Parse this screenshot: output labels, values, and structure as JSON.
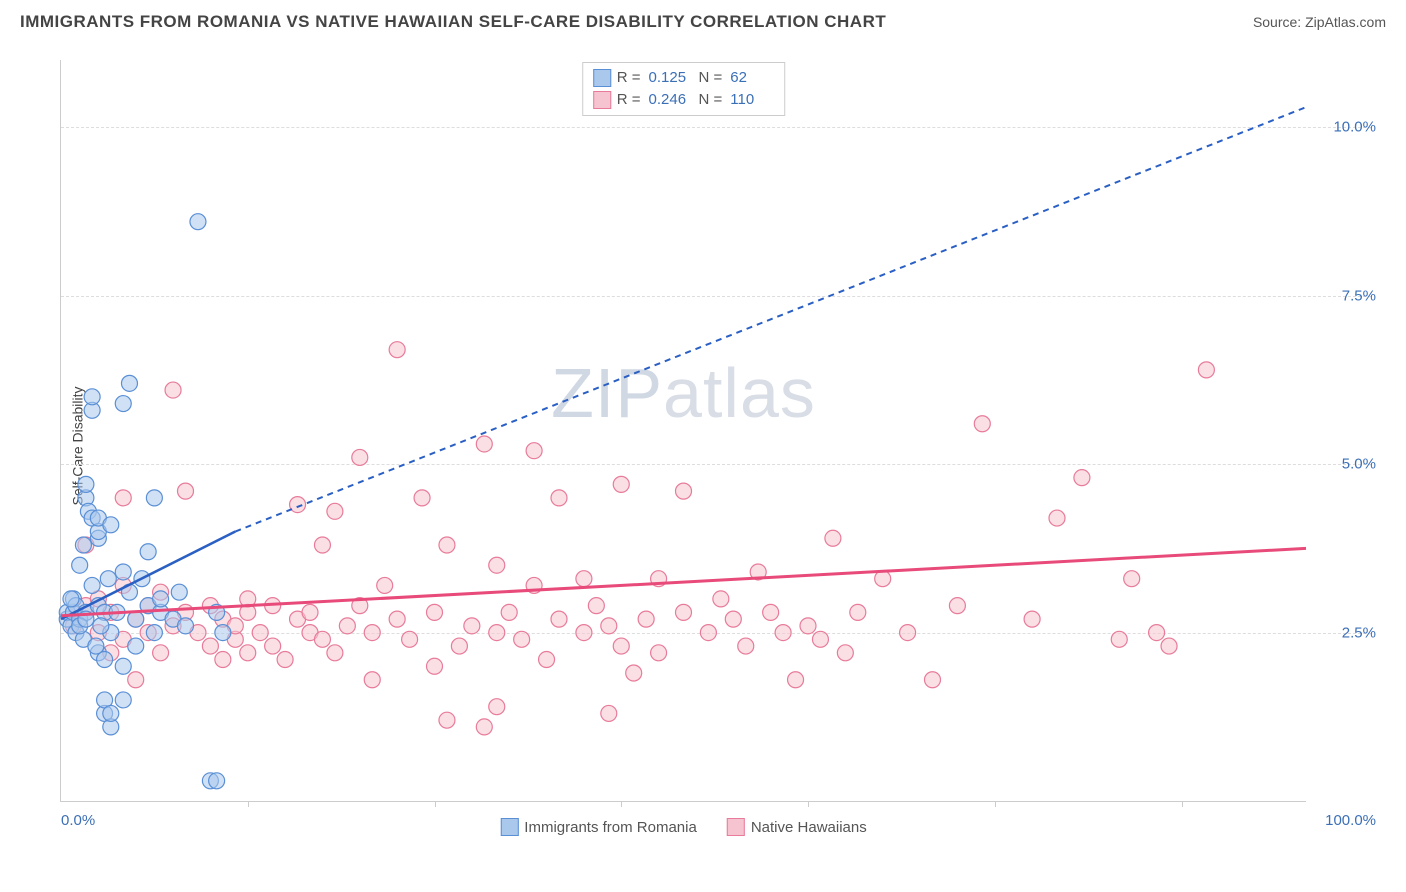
{
  "header": {
    "title": "IMMIGRANTS FROM ROMANIA VS NATIVE HAWAIIAN SELF-CARE DISABILITY CORRELATION CHART",
    "source": "Source: ZipAtlas.com"
  },
  "chart": {
    "type": "scatter",
    "y_axis_label": "Self-Care Disability",
    "watermark": "ZIPatlas",
    "xlim": [
      0,
      100
    ],
    "ylim": [
      0,
      11
    ],
    "x_ticks": [
      0,
      15,
      30,
      45,
      60,
      75,
      90,
      100
    ],
    "x_tick_labels": {
      "0": "0.0%",
      "100": "100.0%"
    },
    "y_gridlines": [
      2.5,
      5.0,
      7.5,
      10.0
    ],
    "y_tick_labels": [
      "2.5%",
      "5.0%",
      "7.5%",
      "10.0%"
    ],
    "background_color": "#ffffff",
    "grid_color": "#dddddd",
    "axis_color": "#cccccc",
    "tick_label_color": "#3b6fb6",
    "marker_radius": 8,
    "marker_stroke_width": 1.2,
    "series": [
      {
        "name": "Immigrants from Romania",
        "fill_color": "#a9c8ec",
        "stroke_color": "#5a8fd6",
        "fill_opacity": 0.55,
        "R": "0.125",
        "N": "62",
        "trend_solid": {
          "x1": 0,
          "y1": 2.7,
          "x2": 14,
          "y2": 4.0
        },
        "trend_dashed": {
          "x1": 14,
          "y1": 4.0,
          "x2": 100,
          "y2": 10.3
        },
        "trend_color": "#2a5fc4",
        "trend_width": 2.5,
        "points": [
          [
            0.5,
            2.7
          ],
          [
            0.5,
            2.8
          ],
          [
            0.8,
            2.6
          ],
          [
            1.0,
            2.8
          ],
          [
            1.0,
            3.0
          ],
          [
            1.2,
            2.5
          ],
          [
            1.2,
            2.9
          ],
          [
            1.5,
            2.7
          ],
          [
            1.5,
            3.5
          ],
          [
            1.8,
            2.4
          ],
          [
            2.0,
            2.8
          ],
          [
            2.0,
            4.5
          ],
          [
            2.0,
            4.7
          ],
          [
            2.2,
            4.3
          ],
          [
            2.5,
            3.2
          ],
          [
            2.5,
            4.2
          ],
          [
            2.5,
            5.8
          ],
          [
            2.5,
            6.0
          ],
          [
            3.0,
            2.2
          ],
          [
            3.0,
            2.9
          ],
          [
            3.0,
            3.9
          ],
          [
            3.0,
            4.0
          ],
          [
            3.0,
            4.2
          ],
          [
            3.5,
            1.3
          ],
          [
            3.5,
            1.5
          ],
          [
            3.5,
            2.1
          ],
          [
            3.5,
            2.8
          ],
          [
            3.8,
            3.3
          ],
          [
            4.0,
            1.1
          ],
          [
            4.0,
            1.3
          ],
          [
            4.0,
            2.5
          ],
          [
            4.0,
            4.1
          ],
          [
            4.5,
            2.8
          ],
          [
            5.0,
            1.5
          ],
          [
            5.0,
            2.0
          ],
          [
            5.0,
            3.4
          ],
          [
            5.0,
            5.9
          ],
          [
            5.5,
            3.1
          ],
          [
            5.5,
            6.2
          ],
          [
            6.0,
            2.3
          ],
          [
            6.0,
            2.7
          ],
          [
            6.5,
            3.3
          ],
          [
            7.0,
            2.9
          ],
          [
            7.0,
            3.7
          ],
          [
            7.5,
            2.5
          ],
          [
            7.5,
            4.5
          ],
          [
            8.0,
            2.8
          ],
          [
            8.0,
            3.0
          ],
          [
            9.0,
            2.7
          ],
          [
            9.5,
            3.1
          ],
          [
            10.0,
            2.6
          ],
          [
            11.0,
            8.6
          ],
          [
            12.0,
            0.3
          ],
          [
            12.5,
            0.3
          ],
          [
            12.5,
            2.8
          ],
          [
            13.0,
            2.5
          ],
          [
            1.5,
            2.6
          ],
          [
            2.0,
            2.7
          ],
          [
            0.8,
            3.0
          ],
          [
            1.8,
            3.8
          ],
          [
            2.8,
            2.3
          ],
          [
            3.2,
            2.6
          ]
        ]
      },
      {
        "name": "Native Hawaiians",
        "fill_color": "#f5c4d0",
        "stroke_color": "#e87b9a",
        "fill_opacity": 0.55,
        "R": "0.246",
        "N": "110",
        "trend_solid": {
          "x1": 0,
          "y1": 2.75,
          "x2": 100,
          "y2": 3.75
        },
        "trend_color": "#e84a7a",
        "trend_width": 3,
        "points": [
          [
            1,
            2.8
          ],
          [
            1,
            2.6
          ],
          [
            2,
            2.9
          ],
          [
            2,
            3.8
          ],
          [
            3,
            2.5
          ],
          [
            3,
            3.0
          ],
          [
            4,
            2.2
          ],
          [
            4,
            2.8
          ],
          [
            5,
            2.4
          ],
          [
            5,
            3.2
          ],
          [
            6,
            2.7
          ],
          [
            6,
            1.8
          ],
          [
            7,
            2.5
          ],
          [
            7,
            2.9
          ],
          [
            8,
            2.2
          ],
          [
            8,
            3.1
          ],
          [
            9,
            2.6
          ],
          [
            9,
            6.1
          ],
          [
            10,
            2.8
          ],
          [
            10,
            4.6
          ],
          [
            11,
            2.5
          ],
          [
            12,
            2.9
          ],
          [
            12,
            2.3
          ],
          [
            13,
            2.1
          ],
          [
            13,
            2.7
          ],
          [
            14,
            2.4
          ],
          [
            14,
            2.6
          ],
          [
            15,
            2.8
          ],
          [
            15,
            3.0
          ],
          [
            16,
            2.5
          ],
          [
            17,
            2.9
          ],
          [
            17,
            2.3
          ],
          [
            18,
            2.1
          ],
          [
            19,
            2.7
          ],
          [
            19,
            4.4
          ],
          [
            20,
            2.5
          ],
          [
            20,
            2.8
          ],
          [
            21,
            3.8
          ],
          [
            21,
            2.4
          ],
          [
            22,
            2.2
          ],
          [
            22,
            4.3
          ],
          [
            23,
            2.6
          ],
          [
            24,
            2.9
          ],
          [
            24,
            5.1
          ],
          [
            25,
            1.8
          ],
          [
            25,
            2.5
          ],
          [
            26,
            3.2
          ],
          [
            27,
            2.7
          ],
          [
            27,
            6.7
          ],
          [
            28,
            2.4
          ],
          [
            29,
            4.5
          ],
          [
            30,
            2.0
          ],
          [
            30,
            2.8
          ],
          [
            31,
            1.2
          ],
          [
            31,
            3.8
          ],
          [
            32,
            2.3
          ],
          [
            33,
            2.6
          ],
          [
            34,
            5.3
          ],
          [
            34,
            1.1
          ],
          [
            35,
            2.5
          ],
          [
            35,
            3.5
          ],
          [
            36,
            2.8
          ],
          [
            37,
            2.4
          ],
          [
            38,
            3.2
          ],
          [
            38,
            5.2
          ],
          [
            39,
            2.1
          ],
          [
            40,
            2.7
          ],
          [
            40,
            4.5
          ],
          [
            42,
            3.3
          ],
          [
            42,
            2.5
          ],
          [
            43,
            2.9
          ],
          [
            44,
            2.6
          ],
          [
            45,
            4.7
          ],
          [
            45,
            2.3
          ],
          [
            46,
            1.9
          ],
          [
            47,
            2.7
          ],
          [
            48,
            3.3
          ],
          [
            48,
            2.2
          ],
          [
            50,
            2.8
          ],
          [
            50,
            4.6
          ],
          [
            52,
            2.5
          ],
          [
            53,
            3.0
          ],
          [
            54,
            2.7
          ],
          [
            55,
            2.3
          ],
          [
            56,
            3.4
          ],
          [
            57,
            2.8
          ],
          [
            58,
            2.5
          ],
          [
            59,
            1.8
          ],
          [
            60,
            2.6
          ],
          [
            61,
            2.4
          ],
          [
            62,
            3.9
          ],
          [
            63,
            2.2
          ],
          [
            64,
            2.8
          ],
          [
            66,
            3.3
          ],
          [
            68,
            2.5
          ],
          [
            70,
            1.8
          ],
          [
            72,
            2.9
          ],
          [
            74,
            5.6
          ],
          [
            78,
            2.7
          ],
          [
            80,
            4.2
          ],
          [
            82,
            4.8
          ],
          [
            85,
            2.4
          ],
          [
            86,
            3.3
          ],
          [
            88,
            2.5
          ],
          [
            89,
            2.3
          ],
          [
            92,
            6.4
          ],
          [
            5,
            4.5
          ],
          [
            15,
            2.2
          ],
          [
            35,
            1.4
          ],
          [
            44,
            1.3
          ]
        ]
      }
    ],
    "bottom_legend": [
      {
        "label": "Immigrants from Romania",
        "fill": "#a9c8ec",
        "stroke": "#5a8fd6"
      },
      {
        "label": "Native Hawaiians",
        "fill": "#f5c4d0",
        "stroke": "#e87b9a"
      }
    ]
  }
}
